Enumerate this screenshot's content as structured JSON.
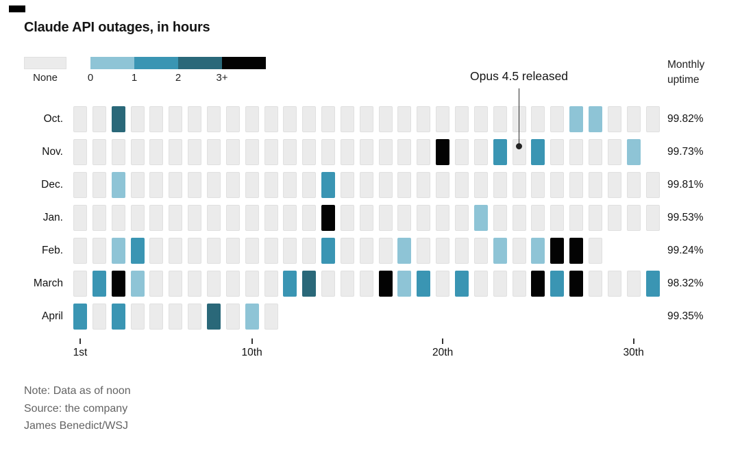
{
  "title": "Claude API outages, in hours",
  "uptime_header": "Monthly uptime",
  "annotation": {
    "text": "Opus 4.5 released",
    "target_month": "Nov.",
    "target_day": 24
  },
  "footnote": {
    "note": "Note: Data as of noon",
    "source": "Source: the company",
    "credit": "James Benedict/WSJ"
  },
  "chart_data": {
    "type": "heatmap",
    "title": "Claude API outages, in hours",
    "value_unit": "hours of outage per day",
    "legend": {
      "position": "top-left",
      "categories": [
        {
          "key": "none",
          "label": "None",
          "color": "#ebebeb"
        },
        {
          "key": "0",
          "label": "0",
          "color": "#8ec4d6"
        },
        {
          "key": "1",
          "label": "1",
          "color": "#3a95b3"
        },
        {
          "key": "2",
          "label": "2",
          "color": "#2a6879"
        },
        {
          "key": "3",
          "label": "3+",
          "color": "#030303"
        }
      ]
    },
    "x_axis": {
      "ticks": [
        {
          "day": 1,
          "label": "1st"
        },
        {
          "day": 10,
          "label": "10th"
        },
        {
          "day": 20,
          "label": "20th"
        },
        {
          "day": 30,
          "label": "30th"
        }
      ]
    },
    "rows": [
      {
        "month": "Oct.",
        "uptime": "99.82%",
        "num_days": 31,
        "outages": {
          "3": "2",
          "27": "0",
          "28": "0"
        }
      },
      {
        "month": "Nov.",
        "uptime": "99.73%",
        "num_days": 30,
        "outages": {
          "20": "3",
          "23": "1",
          "25": "1",
          "30": "0"
        }
      },
      {
        "month": "Dec.",
        "uptime": "99.81%",
        "num_days": 31,
        "outages": {
          "3": "0",
          "14": "1"
        }
      },
      {
        "month": "Jan.",
        "uptime": "99.53%",
        "num_days": 31,
        "outages": {
          "14": "3",
          "22": "0"
        }
      },
      {
        "month": "Feb.",
        "uptime": "99.24%",
        "num_days": 28,
        "outages": {
          "3": "0",
          "4": "1",
          "14": "1",
          "18": "0",
          "23": "0",
          "25": "0",
          "26": "3",
          "27": "3"
        }
      },
      {
        "month": "March",
        "uptime": "98.32%",
        "num_days": 31,
        "outages": {
          "2": "1",
          "3": "3",
          "4": "0",
          "12": "1",
          "13": "2",
          "17": "3",
          "18": "0",
          "19": "1",
          "21": "1",
          "25": "3",
          "26": "1",
          "27": "3",
          "31": "1"
        }
      },
      {
        "month": "April",
        "uptime": "99.35%",
        "num_days": 11,
        "outages": {
          "1": "1",
          "3": "1",
          "8": "2",
          "10": "0"
        }
      }
    ]
  }
}
